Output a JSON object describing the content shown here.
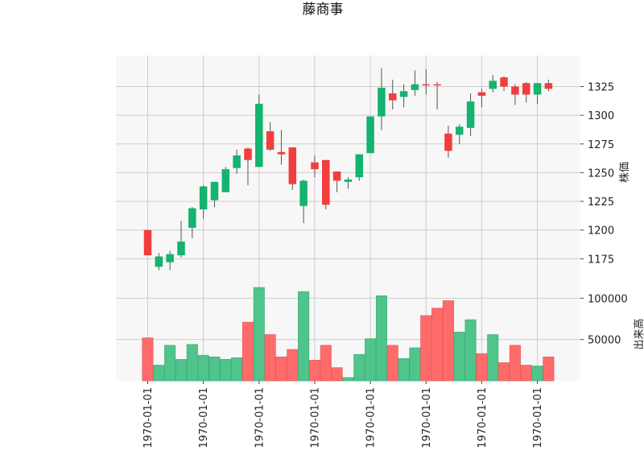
{
  "chart_data": {
    "type": "candlestick",
    "title": "藤商事",
    "price_panel": {
      "ylabel": "株価",
      "ylim": [
        1150,
        1352
      ],
      "yticks": [
        1175,
        1200,
        1225,
        1250,
        1275,
        1300,
        1325
      ],
      "ytick_labels": [
        "1175",
        "1200",
        "1225",
        "1250",
        "1275",
        "1300",
        "1325"
      ],
      "grid": true
    },
    "volume_panel": {
      "ylabel": "出来高",
      "ylim": [
        0,
        113000
      ],
      "yticks": [
        50000,
        100000
      ],
      "ytick_labels": [
        "50000",
        "100000"
      ],
      "grid": true
    },
    "x_tick_indices": [
      0,
      5,
      10,
      15,
      20,
      25,
      30,
      35
    ],
    "x_tick_labels": [
      "1970-01-01",
      "1970-01-01",
      "1970-01-01",
      "1970-01-01",
      "1970-01-01",
      "1970-01-01",
      "1970-01-01",
      "1970-01-01"
    ],
    "colors": {
      "up": "#14b36f",
      "down": "#f23d3d",
      "up_volume": "#4fc48b",
      "down_volume": "#ff6b6b",
      "wick": "#555555",
      "panel_bg": "#f7f7f7",
      "grid": "#cccccc"
    },
    "ohlc": [
      {
        "o": 1200,
        "h": 1200,
        "l": 1178,
        "c": 1178
      },
      {
        "o": 1168,
        "h": 1180,
        "l": 1165,
        "c": 1177
      },
      {
        "o": 1172,
        "h": 1182,
        "l": 1165,
        "c": 1179
      },
      {
        "o": 1178,
        "h": 1208,
        "l": 1176,
        "c": 1190
      },
      {
        "o": 1202,
        "h": 1220,
        "l": 1193,
        "c": 1219
      },
      {
        "o": 1218,
        "h": 1239,
        "l": 1210,
        "c": 1238
      },
      {
        "o": 1226,
        "h": 1242,
        "l": 1220,
        "c": 1242
      },
      {
        "o": 1233,
        "h": 1255,
        "l": 1233,
        "c": 1253
      },
      {
        "o": 1254,
        "h": 1270,
        "l": 1249,
        "c": 1265
      },
      {
        "o": 1271,
        "h": 1272,
        "l": 1239,
        "c": 1261
      },
      {
        "o": 1255,
        "h": 1318,
        "l": 1255,
        "c": 1310
      },
      {
        "o": 1286,
        "h": 1294,
        "l": 1269,
        "c": 1270
      },
      {
        "o": 1268,
        "h": 1287,
        "l": 1257,
        "c": 1266
      },
      {
        "o": 1272,
        "h": 1272,
        "l": 1235,
        "c": 1240
      },
      {
        "o": 1221,
        "h": 1244,
        "l": 1206,
        "c": 1243
      },
      {
        "o": 1259,
        "h": 1265,
        "l": 1246,
        "c": 1253
      },
      {
        "o": 1261,
        "h": 1261,
        "l": 1218,
        "c": 1222
      },
      {
        "o": 1251,
        "h": 1251,
        "l": 1233,
        "c": 1243
      },
      {
        "o": 1242,
        "h": 1246,
        "l": 1236,
        "c": 1244
      },
      {
        "o": 1246,
        "h": 1266,
        "l": 1243,
        "c": 1266
      },
      {
        "o": 1267,
        "h": 1299,
        "l": 1267,
        "c": 1299
      },
      {
        "o": 1299,
        "h": 1341,
        "l": 1287,
        "c": 1324
      },
      {
        "o": 1319,
        "h": 1331,
        "l": 1305,
        "c": 1313
      },
      {
        "o": 1316,
        "h": 1327,
        "l": 1307,
        "c": 1321
      },
      {
        "o": 1322,
        "h": 1339,
        "l": 1317,
        "c": 1327
      },
      {
        "o": 1327,
        "h": 1340,
        "l": 1318,
        "c": 1326
      },
      {
        "o": 1327,
        "h": 1329,
        "l": 1305,
        "c": 1326
      },
      {
        "o": 1284,
        "h": 1291,
        "l": 1263,
        "c": 1269
      },
      {
        "o": 1283,
        "h": 1292,
        "l": 1275,
        "c": 1290
      },
      {
        "o": 1289,
        "h": 1319,
        "l": 1282,
        "c": 1312
      },
      {
        "o": 1320,
        "h": 1323,
        "l": 1307,
        "c": 1317
      },
      {
        "o": 1323,
        "h": 1335,
        "l": 1320,
        "c": 1330
      },
      {
        "o": 1333,
        "h": 1334,
        "l": 1321,
        "c": 1325
      },
      {
        "o": 1325,
        "h": 1327,
        "l": 1309,
        "c": 1318
      },
      {
        "o": 1328,
        "h": 1329,
        "l": 1311,
        "c": 1318
      },
      {
        "o": 1318,
        "h": 1328,
        "l": 1310,
        "c": 1328
      },
      {
        "o": 1328,
        "h": 1331,
        "l": 1321,
        "c": 1323
      }
    ],
    "volume": [
      52000,
      19000,
      43000,
      26000,
      44000,
      31000,
      29000,
      26000,
      28000,
      71000,
      113000,
      56000,
      29000,
      38000,
      108000,
      25000,
      43000,
      16000,
      4000,
      32000,
      51000,
      103000,
      43000,
      27000,
      40000,
      79000,
      88000,
      97000,
      59000,
      74000,
      33000,
      56000,
      22000,
      43000,
      19000,
      18000,
      29000
    ]
  }
}
